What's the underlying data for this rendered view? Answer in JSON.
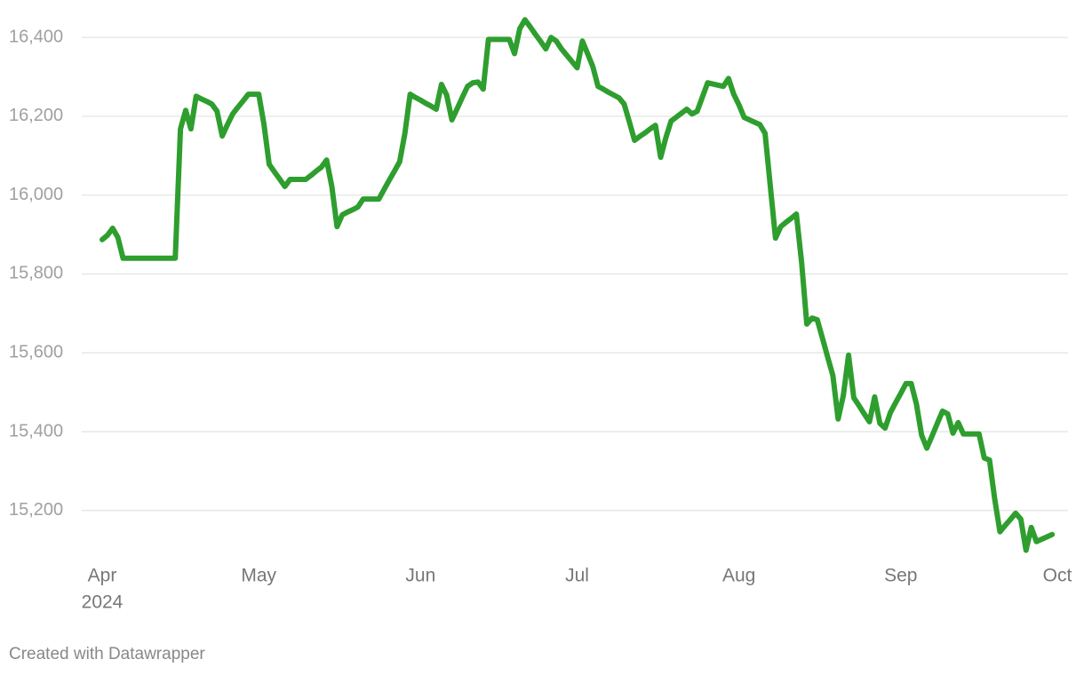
{
  "chart_data": {
    "type": "line",
    "year_label": "2024",
    "footer": "Created with Datawrapper",
    "categories": [
      "Apr",
      null,
      null,
      null,
      null,
      null,
      null,
      null,
      null,
      null,
      null,
      null,
      null,
      null,
      null,
      null,
      null,
      null,
      null,
      null,
      null,
      null,
      null,
      null,
      null,
      null,
      null,
      null,
      null,
      null,
      "May",
      null,
      null,
      null,
      null,
      null,
      null,
      null,
      null,
      null,
      null,
      null,
      null,
      null,
      null,
      null,
      null,
      null,
      null,
      null,
      null,
      null,
      null,
      null,
      null,
      null,
      null,
      null,
      null,
      null,
      null,
      "Jun",
      null,
      null,
      null,
      null,
      null,
      null,
      null,
      null,
      null,
      null,
      null,
      null,
      null,
      null,
      null,
      null,
      null,
      null,
      null,
      null,
      null,
      null,
      null,
      null,
      null,
      null,
      null,
      null,
      null,
      "Jul",
      null,
      null,
      null,
      null,
      null,
      null,
      null,
      null,
      null,
      null,
      null,
      null,
      null,
      null,
      null,
      null,
      null,
      null,
      null,
      null,
      null,
      null,
      null,
      null,
      null,
      null,
      null,
      null,
      null,
      null,
      "Aug",
      null,
      null,
      null,
      null,
      null,
      null,
      null,
      null,
      null,
      null,
      null,
      null,
      null,
      null,
      null,
      null,
      null,
      null,
      null,
      null,
      null,
      null,
      null,
      null,
      null,
      null,
      null,
      null,
      null,
      null,
      "Sep",
      null,
      null,
      null,
      null,
      null,
      null,
      null,
      null,
      null,
      null,
      null,
      null,
      null,
      null,
      null,
      null,
      null,
      null,
      null,
      null,
      null,
      null,
      null,
      null,
      null,
      null,
      null,
      null,
      null,
      "Oct"
    ],
    "series": [
      {
        "color": "#2e9e2e",
        "values": [
          15887,
          15898,
          15916,
          15893,
          15840,
          15840,
          15840,
          15840,
          15840,
          15840,
          15840,
          15840,
          15840,
          15840,
          15840,
          16168,
          16215,
          16168,
          16251,
          16244,
          16238,
          16231,
          16213,
          16150,
          16179,
          16206,
          16223,
          16239,
          16256,
          16256,
          16256,
          16179,
          16078,
          16059,
          16041,
          16022,
          16040,
          16040,
          16040,
          16040,
          16050,
          16061,
          16071,
          16089,
          16022,
          15920,
          15950,
          15957,
          15963,
          15970,
          15990,
          15990,
          15990,
          15990,
          16014,
          16038,
          16061,
          16085,
          16157,
          16256,
          16248,
          16241,
          16233,
          16226,
          16218,
          16281,
          16254,
          16191,
          16219,
          16248,
          16276,
          16285,
          16287,
          16269,
          16395,
          16395,
          16395,
          16395,
          16395,
          16359,
          16422,
          16445,
          16427,
          16408,
          16390,
          16371,
          16400,
          16391,
          16371,
          16355,
          16339,
          16323,
          16391,
          16359,
          16326,
          16276,
          16269,
          16261,
          16254,
          16247,
          16231,
          16186,
          16139,
          16149,
          16158,
          16168,
          16177,
          16096,
          16146,
          16188,
          16198,
          16208,
          16218,
          16206,
          16213,
          16249,
          16285,
          16282,
          16279,
          16276,
          16296,
          16256,
          16229,
          16197,
          16191,
          16185,
          16179,
          16157,
          16024,
          15891,
          15920,
          15931,
          15941,
          15952,
          15830,
          15673,
          15688,
          15684,
          15637,
          15589,
          15542,
          15432,
          15492,
          15594,
          15486,
          15466,
          15445,
          15425,
          15488,
          15421,
          15409,
          15448,
          15473,
          15497,
          15522,
          15522,
          15470,
          15391,
          15358,
          15389,
          15421,
          15452,
          15445,
          15396,
          15423,
          15394,
          15394,
          15394,
          15394,
          15333,
          15328,
          15229,
          15146,
          15162,
          15177,
          15193,
          15178,
          15099,
          15157,
          15121,
          15127,
          15133,
          15139,
          null
        ]
      }
    ],
    "ylim": [
      15080,
      16450
    ],
    "yticks": [
      {
        "value": 15200,
        "label": "15,200"
      },
      {
        "value": 15400,
        "label": "15,400"
      },
      {
        "value": 15600,
        "label": "15,600"
      },
      {
        "value": 15800,
        "label": "15,800"
      },
      {
        "value": 16000,
        "label": "16,000"
      },
      {
        "value": 16200,
        "label": "16,200"
      },
      {
        "value": 16400,
        "label": "16,400"
      }
    ],
    "grid": true
  }
}
